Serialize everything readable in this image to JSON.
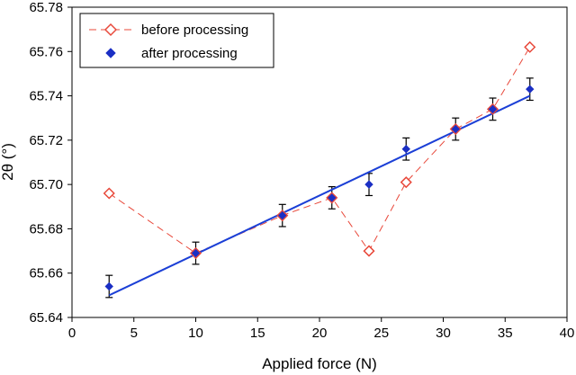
{
  "chart_data": {
    "type": "scatter",
    "xlabel": "Applied force (N)",
    "ylabel": "2θ (°)",
    "xlim": [
      0,
      40
    ],
    "ylim": [
      65.64,
      65.78
    ],
    "x_ticks": [
      "0",
      "5",
      "10",
      "15",
      "20",
      "25",
      "30",
      "35",
      "40"
    ],
    "y_ticks": [
      "65.64",
      "65.66",
      "65.68",
      "65.70",
      "65.72",
      "65.74",
      "65.76",
      "65.78"
    ],
    "grid": false,
    "legend_position": "top-left",
    "series": [
      {
        "name": "before processing",
        "style": "dashed-line-open-diamond",
        "color": "#e8483a",
        "x": [
          3,
          10,
          17,
          21,
          24,
          27,
          31,
          34,
          37
        ],
        "y": [
          65.696,
          65.669,
          65.686,
          65.694,
          65.67,
          65.701,
          65.725,
          65.734,
          65.762
        ]
      },
      {
        "name": "after processing",
        "style": "filled-diamond-with-error-bars",
        "color": "#1b2fc4",
        "x": [
          3,
          10,
          17,
          21,
          24,
          27,
          31,
          34,
          37
        ],
        "y": [
          65.654,
          65.669,
          65.686,
          65.694,
          65.7,
          65.716,
          65.725,
          65.734,
          65.743
        ],
        "error": [
          0.005,
          0.005,
          0.005,
          0.005,
          0.005,
          0.005,
          0.005,
          0.005,
          0.005
        ]
      }
    ],
    "fit_line": {
      "color": "#1b3fd6",
      "x": [
        3,
        37
      ],
      "y": [
        65.65,
        65.74
      ]
    }
  }
}
